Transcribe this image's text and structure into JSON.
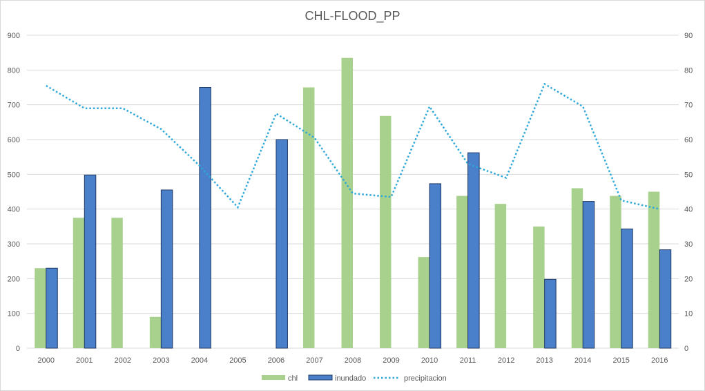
{
  "chart_data": {
    "type": "bar",
    "title": "CHL-FLOOD_PP",
    "categories": [
      "2000",
      "2001",
      "2002",
      "2003",
      "2004",
      "2005",
      "2006",
      "2007",
      "2008",
      "2009",
      "2010",
      "2011",
      "2012",
      "2013",
      "2014",
      "2015",
      "2016"
    ],
    "series": [
      {
        "name": "chl",
        "kind": "bar",
        "axis": "left",
        "color": "#a9d18e",
        "values": [
          230,
          375,
          375,
          90,
          0,
          0,
          0,
          750,
          835,
          668,
          262,
          438,
          415,
          350,
          460,
          438,
          450
        ]
      },
      {
        "name": "inundado",
        "kind": "bar",
        "axis": "left",
        "color": "#4a7fc9",
        "values": [
          230,
          498,
          0,
          455,
          750,
          0,
          600,
          0,
          0,
          0,
          473,
          562,
          0,
          198,
          422,
          343,
          283
        ]
      },
      {
        "name": "precipitacion",
        "kind": "line",
        "style": "dotted",
        "axis": "right",
        "color": "#2ea8d8",
        "values": [
          75.5,
          69,
          69,
          63,
          52.5,
          40.5,
          67.5,
          60.5,
          44.5,
          43.5,
          69.5,
          53,
          49,
          76,
          69.5,
          42.5,
          40
        ]
      }
    ],
    "y_left": {
      "min": 0,
      "max": 900,
      "step": 100,
      "ticks": [
        "0",
        "100",
        "200",
        "300",
        "400",
        "500",
        "600",
        "700",
        "800",
        "900"
      ]
    },
    "y_right": {
      "min": 0,
      "max": 90,
      "step": 10,
      "ticks": [
        "0",
        "10",
        "20",
        "30",
        "40",
        "50",
        "60",
        "70",
        "80",
        "90"
      ]
    },
    "grid": true,
    "legend": {
      "position": "bottom",
      "entries": [
        "chl",
        "inundado",
        "precipitacion"
      ]
    }
  }
}
